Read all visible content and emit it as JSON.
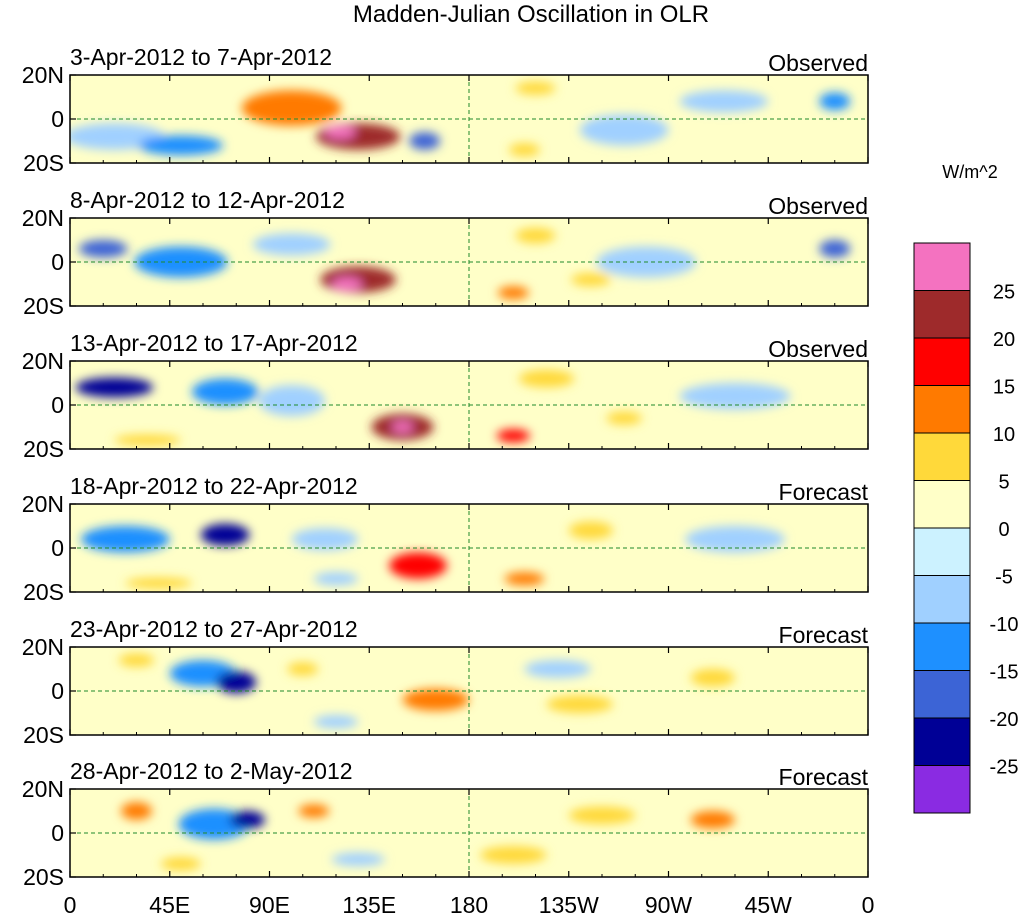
{
  "chart_data": {
    "type": "heatmap",
    "title": "Madden-Julian Oscillation in OLR",
    "x_ticks": [
      "0",
      "45E",
      "90E",
      "135E",
      "180",
      "135W",
      "90W",
      "45W",
      "0"
    ],
    "x_tick_values": [
      0,
      45,
      90,
      135,
      180,
      225,
      270,
      315,
      360
    ],
    "y_ticks": [
      "20N",
      "0",
      "20S"
    ],
    "y_tick_values": [
      20,
      0,
      -20
    ],
    "xlim": [
      0,
      360
    ],
    "ylim": [
      -20,
      20
    ],
    "colorbar": {
      "units": "W/m^2",
      "labels": [
        "25",
        "20",
        "15",
        "10",
        "5",
        "0",
        "-5",
        "-10",
        "-15",
        "-20",
        "-25"
      ],
      "colors": [
        "#f472c0",
        "#9e2a2b",
        "#ff0000",
        "#ff7a00",
        "#ffd93a",
        "#ffffc8",
        "#ccf2ff",
        "#a0d0ff",
        "#1e90ff",
        "#3c64d6",
        "#000096",
        "#8a2be2"
      ]
    },
    "panels": [
      {
        "date_range": "3-Apr-2012 to 7-Apr-2012",
        "kind": "Observed",
        "anomalies": [
          {
            "lon": 100,
            "lat": 5,
            "value": 12,
            "w": 45,
            "h": 16
          },
          {
            "lon": 130,
            "lat": -8,
            "value": 22,
            "w": 38,
            "h": 12
          },
          {
            "lon": 122,
            "lat": -6,
            "value": 27,
            "w": 14,
            "h": 6
          },
          {
            "lon": 160,
            "lat": -10,
            "value": -18,
            "w": 14,
            "h": 8
          },
          {
            "lon": 50,
            "lat": -12,
            "value": -14,
            "w": 38,
            "h": 9
          },
          {
            "lon": 20,
            "lat": -8,
            "value": -6,
            "w": 45,
            "h": 12
          },
          {
            "lon": 205,
            "lat": -14,
            "value": 8,
            "w": 14,
            "h": 6
          },
          {
            "lon": 250,
            "lat": -5,
            "value": -6,
            "w": 40,
            "h": 14
          },
          {
            "lon": 295,
            "lat": 8,
            "value": -6,
            "w": 40,
            "h": 10
          },
          {
            "lon": 345,
            "lat": 8,
            "value": -14,
            "w": 14,
            "h": 8
          },
          {
            "lon": 210,
            "lat": 14,
            "value": 8,
            "w": 18,
            "h": 6
          }
        ]
      },
      {
        "date_range": "8-Apr-2012 to 12-Apr-2012",
        "kind": "Observed",
        "anomalies": [
          {
            "lon": 130,
            "lat": -8,
            "value": 22,
            "w": 34,
            "h": 12
          },
          {
            "lon": 125,
            "lat": -10,
            "value": 27,
            "w": 14,
            "h": 6
          },
          {
            "lon": 15,
            "lat": 6,
            "value": -18,
            "w": 22,
            "h": 8
          },
          {
            "lon": 50,
            "lat": 0,
            "value": -10,
            "w": 42,
            "h": 14
          },
          {
            "lon": 100,
            "lat": 8,
            "value": -8,
            "w": 35,
            "h": 10
          },
          {
            "lon": 210,
            "lat": 12,
            "value": 10,
            "w": 18,
            "h": 7
          },
          {
            "lon": 200,
            "lat": -14,
            "value": 14,
            "w": 14,
            "h": 6
          },
          {
            "lon": 260,
            "lat": 0,
            "value": -6,
            "w": 45,
            "h": 14
          },
          {
            "lon": 345,
            "lat": 6,
            "value": -16,
            "w": 14,
            "h": 8
          },
          {
            "lon": 235,
            "lat": -8,
            "value": 6,
            "w": 18,
            "h": 6
          }
        ]
      },
      {
        "date_range": "13-Apr-2012 to 17-Apr-2012",
        "kind": "Observed",
        "anomalies": [
          {
            "lon": 150,
            "lat": -10,
            "value": 22,
            "w": 28,
            "h": 12
          },
          {
            "lon": 150,
            "lat": -10,
            "value": 27,
            "w": 10,
            "h": 5
          },
          {
            "lon": 20,
            "lat": 8,
            "value": -22,
            "w": 35,
            "h": 9
          },
          {
            "lon": 70,
            "lat": 6,
            "value": -14,
            "w": 30,
            "h": 12
          },
          {
            "lon": 100,
            "lat": 2,
            "value": -8,
            "w": 30,
            "h": 14
          },
          {
            "lon": 200,
            "lat": -14,
            "value": 16,
            "w": 15,
            "h": 6
          },
          {
            "lon": 215,
            "lat": 12,
            "value": 6,
            "w": 25,
            "h": 8
          },
          {
            "lon": 250,
            "lat": -6,
            "value": 8,
            "w": 16,
            "h": 6
          },
          {
            "lon": 300,
            "lat": 4,
            "value": -8,
            "w": 50,
            "h": 12
          },
          {
            "lon": 35,
            "lat": -16,
            "value": 6,
            "w": 30,
            "h": 5
          }
        ]
      },
      {
        "date_range": "18-Apr-2012 to 22-Apr-2012",
        "kind": "Forecast",
        "anomalies": [
          {
            "lon": 157,
            "lat": -8,
            "value": 18,
            "w": 26,
            "h": 12
          },
          {
            "lon": 70,
            "lat": 6,
            "value": -20,
            "w": 22,
            "h": 10
          },
          {
            "lon": 25,
            "lat": 4,
            "value": -10,
            "w": 40,
            "h": 12
          },
          {
            "lon": 115,
            "lat": 4,
            "value": -8,
            "w": 30,
            "h": 10
          },
          {
            "lon": 205,
            "lat": -14,
            "value": 14,
            "w": 18,
            "h": 6
          },
          {
            "lon": 235,
            "lat": 8,
            "value": 8,
            "w": 20,
            "h": 8
          },
          {
            "lon": 300,
            "lat": 4,
            "value": -8,
            "w": 45,
            "h": 12
          },
          {
            "lon": 40,
            "lat": -16,
            "value": 6,
            "w": 30,
            "h": 5
          },
          {
            "lon": 120,
            "lat": -14,
            "value": -8,
            "w": 20,
            "h": 6
          }
        ]
      },
      {
        "date_range": "23-Apr-2012 to 27-Apr-2012",
        "kind": "Forecast",
        "anomalies": [
          {
            "lon": 165,
            "lat": -4,
            "value": 12,
            "w": 30,
            "h": 10
          },
          {
            "lon": 75,
            "lat": 4,
            "value": -20,
            "w": 18,
            "h": 10
          },
          {
            "lon": 60,
            "lat": 8,
            "value": -10,
            "w": 30,
            "h": 12
          },
          {
            "lon": 30,
            "lat": 14,
            "value": 10,
            "w": 16,
            "h": 6
          },
          {
            "lon": 105,
            "lat": 10,
            "value": 8,
            "w": 14,
            "h": 6
          },
          {
            "lon": 220,
            "lat": 10,
            "value": -8,
            "w": 30,
            "h": 8
          },
          {
            "lon": 290,
            "lat": 6,
            "value": 10,
            "w": 20,
            "h": 8
          },
          {
            "lon": 230,
            "lat": -6,
            "value": 6,
            "w": 30,
            "h": 8
          },
          {
            "lon": 120,
            "lat": -14,
            "value": -6,
            "w": 20,
            "h": 6
          }
        ]
      },
      {
        "date_range": "28-Apr-2012 to 2-May-2012",
        "kind": "Forecast",
        "anomalies": [
          {
            "lon": 30,
            "lat": 10,
            "value": 14,
            "w": 14,
            "h": 8
          },
          {
            "lon": 80,
            "lat": 6,
            "value": -20,
            "w": 16,
            "h": 8
          },
          {
            "lon": 65,
            "lat": 4,
            "value": -10,
            "w": 32,
            "h": 14
          },
          {
            "lon": 110,
            "lat": 10,
            "value": 12,
            "w": 14,
            "h": 6
          },
          {
            "lon": 290,
            "lat": 6,
            "value": 12,
            "w": 20,
            "h": 8
          },
          {
            "lon": 240,
            "lat": 8,
            "value": 6,
            "w": 30,
            "h": 8
          },
          {
            "lon": 200,
            "lat": -10,
            "value": 6,
            "w": 30,
            "h": 8
          },
          {
            "lon": 130,
            "lat": -12,
            "value": -6,
            "w": 24,
            "h": 6
          },
          {
            "lon": 50,
            "lat": -14,
            "value": 8,
            "w": 18,
            "h": 6
          }
        ]
      }
    ]
  }
}
